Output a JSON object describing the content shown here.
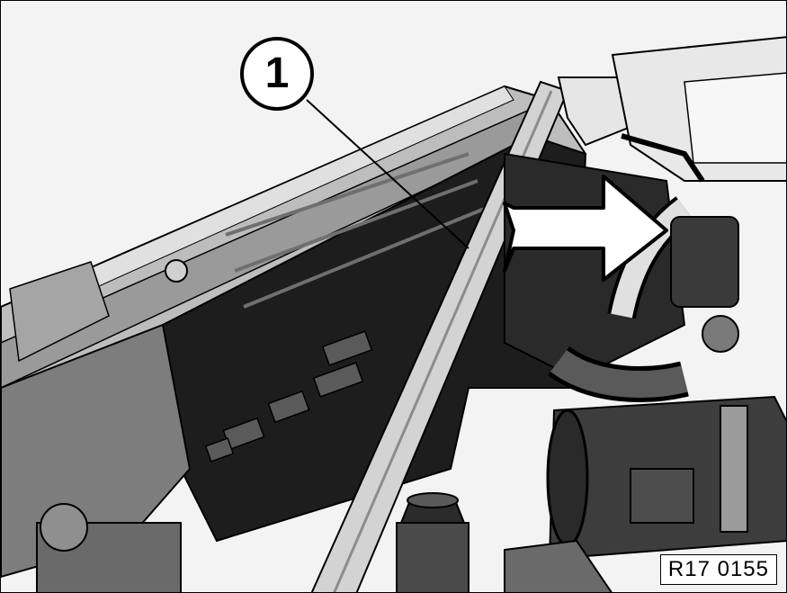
{
  "callout": {
    "number": "1"
  },
  "reference_code": "R17 0155",
  "colors": {
    "background": "#f3f3f3",
    "line": "#000000",
    "dark": "#1a1a1a",
    "mid": "#8a8a8a",
    "light": "#d9d9d9"
  }
}
